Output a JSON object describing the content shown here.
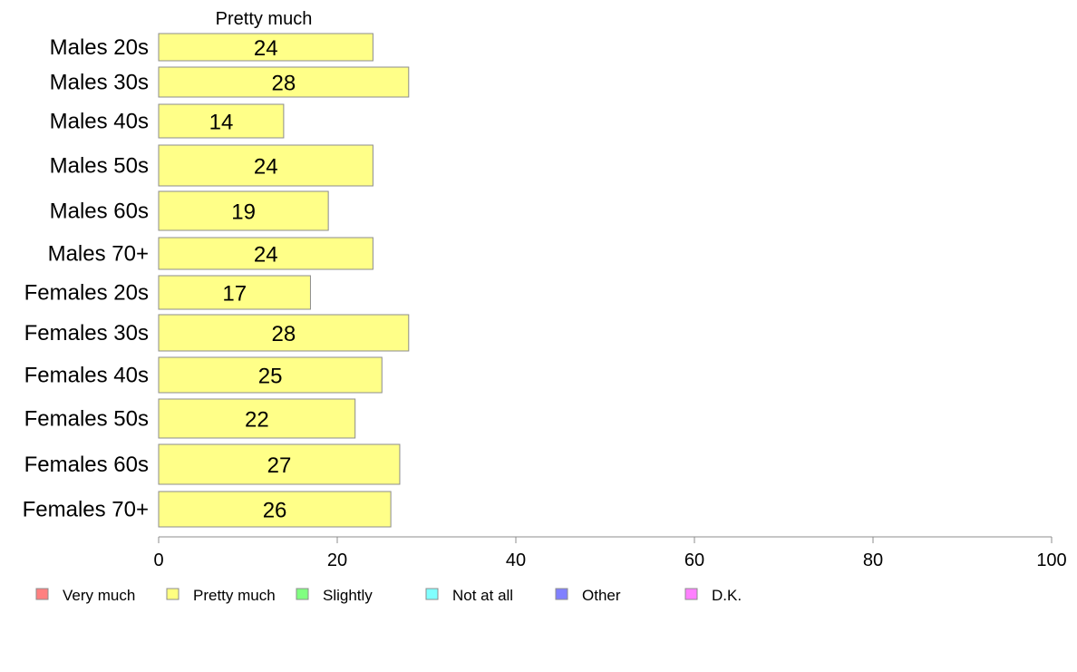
{
  "chart_data": {
    "type": "bar",
    "orientation": "horizontal",
    "stacked": true,
    "series_header": "Pretty much",
    "categories": [
      "Males 20s",
      "Males 30s",
      "Males 40s",
      "Males 50s",
      "Males 60s",
      "Males 70+",
      "Females 20s",
      "Females 30s",
      "Females 40s",
      "Females 50s",
      "Females 60s",
      "Females 70+"
    ],
    "series": [
      {
        "name": "Pretty much",
        "color": "#ffff88",
        "values": [
          24,
          28,
          14,
          24,
          19,
          24,
          17,
          28,
          25,
          22,
          27,
          26
        ]
      }
    ],
    "xlim": [
      0,
      100
    ],
    "xticks": [
      0,
      20,
      40,
      60,
      80,
      100
    ],
    "grid": false,
    "legend": {
      "position": "bottom-left",
      "entries": [
        {
          "label": "Very much",
          "color": "#ff8080"
        },
        {
          "label": "Pretty much",
          "color": "#ffff80"
        },
        {
          "label": "Slightly",
          "color": "#80ff80"
        },
        {
          "label": "Not at all",
          "color": "#80ffff"
        },
        {
          "label": "Other",
          "color": "#8080ff"
        },
        {
          "label": "D.K.",
          "color": "#ff80ff"
        }
      ]
    }
  }
}
